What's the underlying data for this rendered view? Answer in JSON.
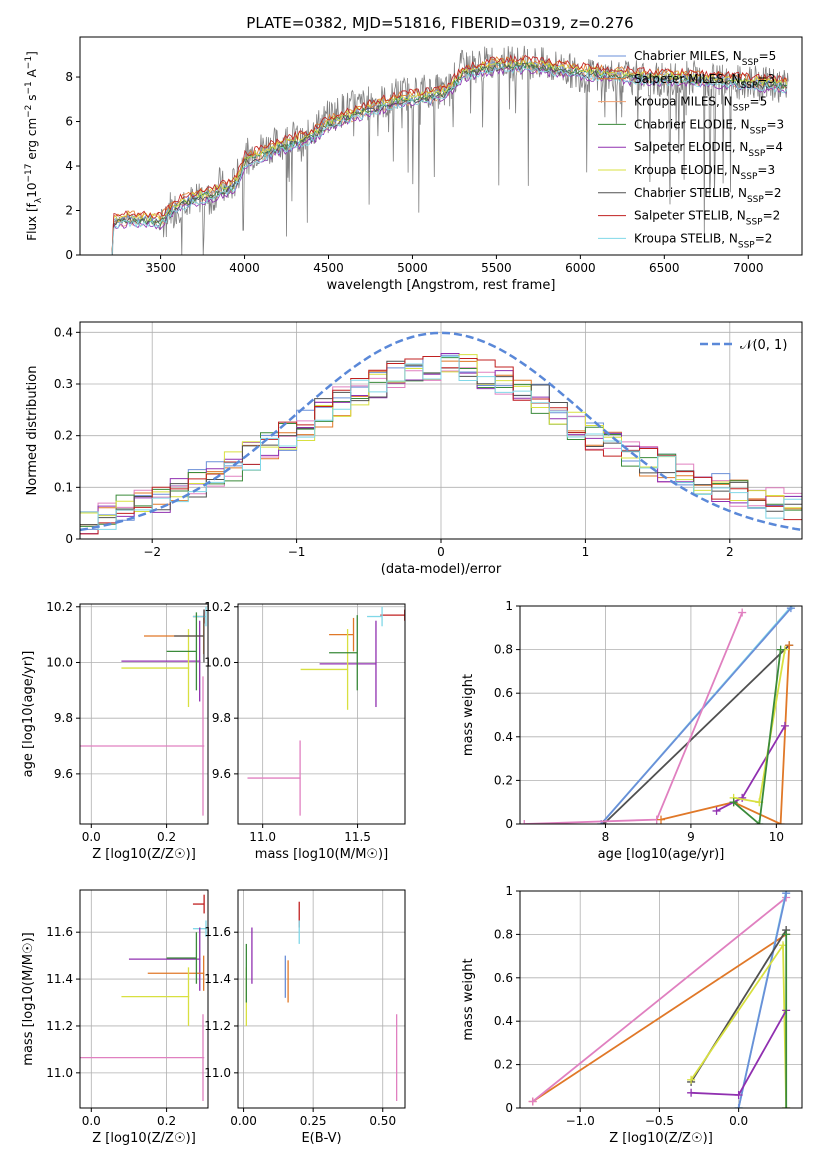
{
  "colors": [
    "#6a8fd8",
    "#e07828",
    "#f0a070",
    "#3a8a3a",
    "#9030b0",
    "#d8e040",
    "#505050",
    "#c02020",
    "#80d8e8",
    "#808080",
    "#e080c0"
  ],
  "chart_data": [
    {
      "id": "spectrum",
      "type": "line",
      "title": "PLATE=0382, MJD=51816, FIBERID=0319, z=0.276",
      "xlabel": "wavelength [Angstrom, rest frame]",
      "ylabel": "Flux [f_λ 10^-17 erg cm^-2 s^-1 A^-1]",
      "xlim": [
        3020,
        7320
      ],
      "ylim": [
        0,
        9.8
      ],
      "xticks": [
        3500,
        4000,
        4500,
        5000,
        5500,
        6000,
        6500,
        7000
      ],
      "yticks": [
        0,
        2,
        4,
        6,
        8
      ],
      "grid": false,
      "legend": "top-right",
      "data_color": "#808080",
      "data_points": [
        [
          3210,
          0
        ],
        [
          3215,
          1.5
        ],
        [
          3250,
          1.6
        ],
        [
          3300,
          1.7
        ],
        [
          3350,
          1.6
        ],
        [
          3400,
          1.65
        ],
        [
          3450,
          1.55
        ],
        [
          3500,
          1.2
        ],
        [
          3550,
          2.2
        ],
        [
          3600,
          2.1
        ],
        [
          3650,
          2.6
        ],
        [
          3700,
          2.3
        ],
        [
          3750,
          2.8
        ],
        [
          3800,
          2.4
        ],
        [
          3850,
          3.2
        ],
        [
          3900,
          2.8
        ],
        [
          3950,
          3.4
        ],
        [
          4000,
          4.4
        ],
        [
          4100,
          4.8
        ],
        [
          4200,
          5.0
        ],
        [
          4300,
          5.3
        ],
        [
          4350,
          4.9
        ],
        [
          4400,
          5.6
        ],
        [
          4500,
          6.2
        ],
        [
          4600,
          6.6
        ],
        [
          4700,
          6.7
        ],
        [
          4800,
          7.0
        ],
        [
          4850,
          6.8
        ],
        [
          4900,
          7.2
        ],
        [
          5000,
          7.3
        ],
        [
          5100,
          7.4
        ],
        [
          5200,
          7.3
        ],
        [
          5300,
          8.5
        ],
        [
          5400,
          8.5
        ],
        [
          5500,
          8.8
        ],
        [
          5600,
          8.6
        ],
        [
          5700,
          8.7
        ],
        [
          5800,
          8.5
        ],
        [
          5900,
          8.4
        ],
        [
          6000,
          8.1
        ],
        [
          6100,
          8.0
        ],
        [
          6200,
          8.1
        ],
        [
          6300,
          8.0
        ],
        [
          6400,
          7.9
        ],
        [
          6500,
          7.9
        ],
        [
          6600,
          7.9
        ],
        [
          6700,
          8.0
        ],
        [
          6800,
          7.8
        ],
        [
          6900,
          7.7
        ],
        [
          7000,
          7.8
        ],
        [
          7100,
          7.7
        ],
        [
          7200,
          7.6
        ]
      ],
      "series": [
        {
          "name": "Chabrier MILES, N_SSP=5",
          "offset": 0.1
        },
        {
          "name": "Salpeter MILES, N_SSP=3",
          "offset": 0.25
        },
        {
          "name": "Kroupa MILES, N_SSP=5",
          "offset": -0.1
        },
        {
          "name": "Chabrier ELODIE, N_SSP=3",
          "offset": 0.0
        },
        {
          "name": "Salpeter ELODIE, N_SSP=4",
          "offset": -0.2
        },
        {
          "name": "Kroupa ELODIE, N_SSP=3",
          "offset": 0.15
        },
        {
          "name": "Chabrier STELIB, N_SSP=2",
          "offset": -0.05
        },
        {
          "name": "Salpeter STELIB, N_SSP=2",
          "offset": 0.3
        },
        {
          "name": "Kroupa STELIB, N_SSP=2",
          "offset": -0.15
        }
      ],
      "model": [
        [
          3210,
          0
        ],
        [
          3215,
          1.45
        ],
        [
          3300,
          1.6
        ],
        [
          3400,
          1.55
        ],
        [
          3500,
          1.5
        ],
        [
          3600,
          2.2
        ],
        [
          3700,
          2.5
        ],
        [
          3800,
          2.7
        ],
        [
          3900,
          3.0
        ],
        [
          3950,
          3.2
        ],
        [
          4000,
          4.2
        ],
        [
          4200,
          4.8
        ],
        [
          4400,
          5.3
        ],
        [
          4500,
          5.9
        ],
        [
          4700,
          6.4
        ],
        [
          4900,
          6.9
        ],
        [
          5100,
          7.1
        ],
        [
          5200,
          7.3
        ],
        [
          5300,
          8.1
        ],
        [
          5500,
          8.5
        ],
        [
          5700,
          8.5
        ],
        [
          6000,
          8.2
        ],
        [
          6300,
          8.0
        ],
        [
          6600,
          7.9
        ],
        [
          6900,
          7.8
        ],
        [
          7200,
          7.6
        ]
      ]
    },
    {
      "id": "residuals",
      "type": "line",
      "xlabel": "(data-model)/error",
      "ylabel": "Normed distribution",
      "xlim": [
        -2.5,
        2.5
      ],
      "ylim": [
        0,
        0.42
      ],
      "xticks": [
        -2,
        -1,
        0,
        1,
        2
      ],
      "yticks": [
        0,
        0.1,
        0.2,
        0.3,
        0.4
      ],
      "grid": true,
      "legend": "top-right",
      "gauss_label": "𝒩(0, 1)",
      "gauss_color": "#5a88d8",
      "hist_base": [
        0.03,
        0.045,
        0.055,
        0.065,
        0.075,
        0.09,
        0.105,
        0.12,
        0.14,
        0.16,
        0.18,
        0.2,
        0.22,
        0.245,
        0.265,
        0.285,
        0.3,
        0.315,
        0.325,
        0.33,
        0.335,
        0.33,
        0.32,
        0.31,
        0.29,
        0.27,
        0.245,
        0.22,
        0.2,
        0.18,
        0.165,
        0.15,
        0.14,
        0.125,
        0.115,
        0.1,
        0.09,
        0.08,
        0.07,
        0.06
      ]
    },
    {
      "id": "age-vs-Z",
      "type": "scatter",
      "xlabel": "Z [log10(Z/Z☉)]",
      "ylabel": "age  [log10(age/yr)]",
      "xlim": [
        -0.03,
        0.31
      ],
      "ylim": [
        9.42,
        10.21
      ],
      "xticks": [
        0.0,
        0.2
      ],
      "xticklabels": [
        "0.0",
        "0.2"
      ],
      "yticks": [
        9.6,
        9.8,
        10.0,
        10.2
      ],
      "yticklabels": [
        "9.6",
        "9.8",
        "10.0",
        "10.2"
      ],
      "grid": true,
      "crosses": [
        {
          "c": 7,
          "x": [
            0.27,
            0.3
          ],
          "y": [
            10.14,
            10.19
          ]
        },
        {
          "c": 8,
          "x": [
            0.27,
            0.305
          ],
          "y": [
            10.13,
            10.2
          ]
        },
        {
          "c": 1,
          "x": [
            0.14,
            0.3
          ],
          "y": [
            10.03,
            10.16
          ]
        },
        {
          "c": 4,
          "x": [
            0.08,
            0.29
          ],
          "y": [
            9.86,
            10.15
          ]
        },
        {
          "c": 5,
          "x": [
            0.08,
            0.26
          ],
          "y": [
            9.84,
            10.12
          ]
        },
        {
          "c": 3,
          "x": [
            0.2,
            0.28
          ],
          "y": [
            9.9,
            10.18
          ]
        },
        {
          "c": 6,
          "x": [
            0.22,
            0.3
          ],
          "y": [
            10.0,
            10.19
          ]
        },
        {
          "c": 10,
          "x": [
            -0.03,
            0.3
          ],
          "y": [
            9.45,
            9.95
          ]
        }
      ]
    },
    {
      "id": "age-vs-mass",
      "type": "scatter",
      "xlabel": "mass [log10(M/M☉)]",
      "ylabel": "",
      "xlim": [
        10.87,
        11.75
      ],
      "ylim": [
        9.42,
        10.21
      ],
      "xticks": [
        11.0,
        11.5
      ],
      "xticklabels": [
        "11.0",
        "11.5"
      ],
      "yticks": [
        9.6,
        9.8,
        10.0,
        10.2
      ],
      "yticklabels": [
        "9.6",
        "9.8",
        "10.0",
        "10.2"
      ],
      "grid": true,
      "crosses": [
        {
          "c": 7,
          "x": [
            11.62,
            11.75
          ],
          "y": [
            10.15,
            10.19
          ]
        },
        {
          "c": 8,
          "x": [
            11.55,
            11.63
          ],
          "y": [
            10.13,
            10.2
          ]
        },
        {
          "c": 1,
          "x": [
            11.35,
            11.48
          ],
          "y": [
            10.04,
            10.16
          ]
        },
        {
          "c": 4,
          "x": [
            11.3,
            11.6
          ],
          "y": [
            9.84,
            10.15
          ]
        },
        {
          "c": 5,
          "x": [
            11.2,
            11.45
          ],
          "y": [
            9.83,
            10.12
          ]
        },
        {
          "c": 3,
          "x": [
            11.35,
            11.5
          ],
          "y": [
            9.9,
            10.17
          ]
        },
        {
          "c": 10,
          "x": [
            10.92,
            11.2
          ],
          "y": [
            9.45,
            9.72
          ]
        }
      ]
    },
    {
      "id": "mass-weight-vs-age",
      "type": "line",
      "xlabel": "age  [log10(age/yr)]",
      "ylabel": "mass weight",
      "xlim": [
        7.0,
        10.3
      ],
      "ylim": [
        0,
        1
      ],
      "xticks": [
        8,
        9,
        10
      ],
      "yticks": [
        0,
        0.2,
        0.4,
        0.6,
        0.8,
        1.0
      ],
      "grid": true,
      "series": [
        {
          "c": 8,
          "points": [
            [
              7.95,
              0
            ],
            [
              10.18,
              1.0
            ]
          ]
        },
        {
          "c": 0,
          "points": [
            [
              7.95,
              0
            ],
            [
              10.17,
              0.99
            ]
          ]
        },
        {
          "c": 6,
          "points": [
            [
              7.98,
              0
            ],
            [
              10.15,
              0.82
            ]
          ]
        },
        {
          "c": 10,
          "points": [
            [
              7.05,
              0.0
            ],
            [
              8.6,
              0.02
            ],
            [
              9.6,
              0.97
            ]
          ]
        },
        {
          "c": 1,
          "points": [
            [
              8.65,
              0.02
            ],
            [
              9.5,
              0.1
            ],
            [
              10.05,
              0.0
            ],
            [
              10.15,
              0.82
            ]
          ]
        },
        {
          "c": 4,
          "points": [
            [
              9.3,
              0.06
            ],
            [
              9.6,
              0.12
            ],
            [
              10.1,
              0.45
            ]
          ]
        },
        {
          "c": 5,
          "points": [
            [
              9.5,
              0.12
            ],
            [
              9.8,
              0.1
            ],
            [
              10.1,
              0.8
            ]
          ]
        },
        {
          "c": 3,
          "points": [
            [
              9.5,
              0.1
            ],
            [
              9.8,
              0.0
            ],
            [
              10.05,
              0.8
            ]
          ]
        }
      ]
    },
    {
      "id": "mass-vs-Z",
      "type": "scatter",
      "xlabel": "Z [log10(Z/Z☉)]",
      "ylabel": "mass [log10(M/M☉)]",
      "xlim": [
        -0.03,
        0.31
      ],
      "ylim": [
        10.85,
        11.78
      ],
      "xticks": [
        0.0,
        0.2
      ],
      "xticklabels": [
        "0.0",
        "0.2"
      ],
      "yticks": [
        11.0,
        11.2,
        11.4,
        11.6
      ],
      "yticklabels": [
        "11.0",
        "11.2",
        "11.4",
        "11.6"
      ],
      "grid": true,
      "crosses": [
        {
          "c": 7,
          "x": [
            0.27,
            0.3
          ],
          "y": [
            11.68,
            11.76
          ]
        },
        {
          "c": 8,
          "x": [
            0.27,
            0.305
          ],
          "y": [
            11.58,
            11.65
          ]
        },
        {
          "c": 4,
          "x": [
            0.1,
            0.29
          ],
          "y": [
            11.35,
            11.62
          ]
        },
        {
          "c": 1,
          "x": [
            0.15,
            0.3
          ],
          "y": [
            11.35,
            11.5
          ]
        },
        {
          "c": 5,
          "x": [
            0.08,
            0.26
          ],
          "y": [
            11.2,
            11.45
          ]
        },
        {
          "c": 3,
          "x": [
            0.2,
            0.28
          ],
          "y": [
            11.38,
            11.6
          ]
        },
        {
          "c": 10,
          "x": [
            -0.03,
            0.3
          ],
          "y": [
            10.88,
            11.25
          ]
        }
      ]
    },
    {
      "id": "mass-vs-EBV",
      "type": "scatter",
      "xlabel": "E(B-V)",
      "ylabel": "",
      "xlim": [
        -0.02,
        0.58
      ],
      "ylim": [
        10.85,
        11.78
      ],
      "xticks": [
        0.0,
        0.25,
        0.5
      ],
      "xticklabels": [
        "0.00",
        "0.25",
        "0.50"
      ],
      "yticks": [
        11.0,
        11.2,
        11.4,
        11.6
      ],
      "yticklabels": [
        "11.0",
        "11.2",
        "11.4",
        "11.6"
      ],
      "grid": true,
      "vlines": [
        {
          "c": 7,
          "x": 0.2,
          "y": [
            11.62,
            11.73
          ]
        },
        {
          "c": 8,
          "x": 0.2,
          "y": [
            11.55,
            11.65
          ]
        },
        {
          "c": 1,
          "x": 0.16,
          "y": [
            11.3,
            11.48
          ]
        },
        {
          "c": 0,
          "x": 0.15,
          "y": [
            11.32,
            11.5
          ]
        },
        {
          "c": 4,
          "x": 0.03,
          "y": [
            11.38,
            11.62
          ]
        },
        {
          "c": 5,
          "x": 0.01,
          "y": [
            11.2,
            11.45
          ]
        },
        {
          "c": 3,
          "x": 0.01,
          "y": [
            11.3,
            11.55
          ]
        },
        {
          "c": 10,
          "x": 0.55,
          "y": [
            10.88,
            11.25
          ]
        }
      ]
    },
    {
      "id": "mass-weight-vs-Z",
      "type": "line",
      "xlabel": "Z [log10(Z/Z☉)]",
      "ylabel": "mass weight",
      "xlim": [
        -1.38,
        0.4
      ],
      "ylim": [
        0,
        1
      ],
      "xticks": [
        -1.0,
        -0.5,
        0.0
      ],
      "xticklabels": [
        "−1.0",
        "−0.5",
        "0.0"
      ],
      "yticks": [
        0,
        0.2,
        0.4,
        0.6,
        0.8,
        1.0
      ],
      "grid": true,
      "series": [
        {
          "c": 1,
          "points": [
            [
              -1.3,
              0.03
            ],
            [
              0.3,
              0.8
            ]
          ]
        },
        {
          "c": 10,
          "points": [
            [
              -1.3,
              0.03
            ],
            [
              0.3,
              0.97
            ]
          ]
        },
        {
          "c": 8,
          "points": [
            [
              0.0,
              0.0
            ],
            [
              0.3,
              1.0
            ]
          ]
        },
        {
          "c": 0,
          "points": [
            [
              0.0,
              0.0
            ],
            [
              0.3,
              0.99
            ]
          ]
        },
        {
          "c": 6,
          "points": [
            [
              -0.3,
              0.12
            ],
            [
              0.3,
              0.82
            ]
          ]
        },
        {
          "c": 5,
          "points": [
            [
              -0.3,
              0.13
            ],
            [
              0.28,
              0.75
            ],
            [
              0.3,
              0.0
            ]
          ]
        },
        {
          "c": 4,
          "points": [
            [
              -0.3,
              0.07
            ],
            [
              0.0,
              0.06
            ],
            [
              0.3,
              0.45
            ]
          ]
        },
        {
          "c": 3,
          "points": [
            [
              0.3,
              0.0
            ],
            [
              0.3,
              0.8
            ]
          ]
        }
      ]
    }
  ]
}
